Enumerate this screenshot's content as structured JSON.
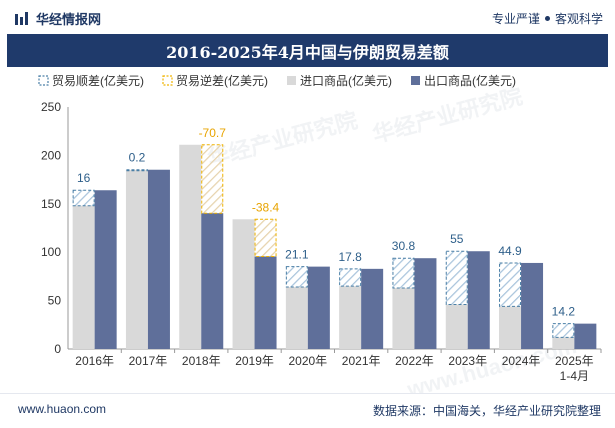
{
  "header": {
    "brand_name": "华经情报网",
    "slogan_left": "专业严谨",
    "slogan_right": "客观科学"
  },
  "title": "2016-2025年4月中国与伊朗贸易差额",
  "footer": {
    "website": "www.huaon.com",
    "source": "数据来源：中国海关，华经产业研究院整理"
  },
  "watermarks": [
    "华经产业研究院",
    "华经产业研究院",
    "www.huaon.com"
  ],
  "colors": {
    "title_bg": "#1f3a6b",
    "import": "#d9d9d9",
    "export": "#5f6f9a",
    "surplus_border": "#4a7fa6",
    "deficit_border": "#f0b400",
    "surplus_label": "#2e5f8a",
    "deficit_label": "#e8a400"
  },
  "chart_data": {
    "type": "bar",
    "categories": [
      "2016年",
      "2017年",
      "2018年",
      "2019年",
      "2020年",
      "2021年",
      "2022年",
      "2023年",
      "2024年",
      "2025年\n1-4月"
    ],
    "ylim": [
      0,
      250
    ],
    "yticks": [
      0,
      50,
      100,
      150,
      200,
      250
    ],
    "series": [
      {
        "name": "进口商品(亿美元)",
        "key": "import",
        "values": [
          148,
          185,
          211,
          134,
          64,
          65,
          63,
          46,
          44,
          12
        ]
      },
      {
        "name": "出口商品(亿美元)",
        "key": "export",
        "values": [
          164,
          185.2,
          140.3,
          95.6,
          85.1,
          82.8,
          93.8,
          101,
          88.9,
          26.2
        ]
      }
    ],
    "balance": [
      16,
      0.2,
      -70.7,
      -38.4,
      21.1,
      17.8,
      30.8,
      55,
      44.9,
      14.2
    ],
    "legend": [
      "贸易顺差(亿美元)",
      "贸易逆差(亿美元)",
      "进口商品(亿美元)",
      "出口商品(亿美元)"
    ]
  }
}
